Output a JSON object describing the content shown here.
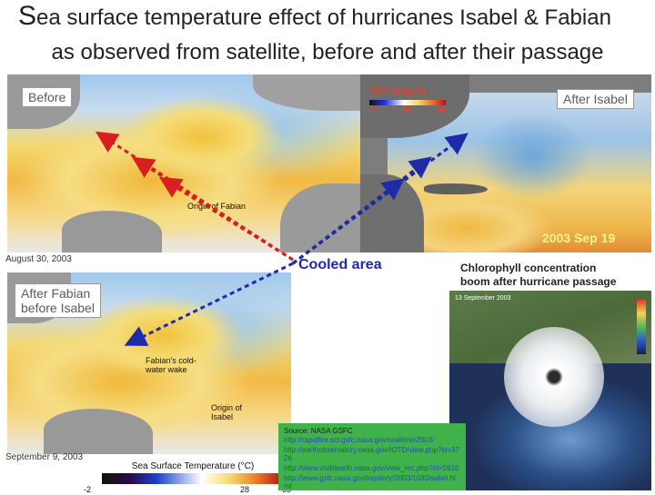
{
  "title": {
    "line1_initial": "S",
    "line1_rest": "ea surface temperature effect of hurricanes Isabel & Fabian",
    "line2": "as observed from satellite, before and after their passage"
  },
  "panels": {
    "before": {
      "label": "Before",
      "date": "August 30, 2003",
      "annotation": "Origin of Fabian"
    },
    "after_isabel": {
      "label": "After Isabel",
      "legend_title": "SST (deg C)",
      "legend_ticks": [
        "21",
        "28",
        "35"
      ],
      "date": "2003 Sep 19"
    },
    "after_fabian": {
      "label_line1": "After Fabian",
      "label_line2": "before Isabel",
      "date": "September 9, 2003",
      "annotation_wake": "Fabian's cold-water wake",
      "annotation_origin": "Origin of Isabel",
      "legend_title": "Sea Surface Temperature (°C)",
      "legend_ticks": [
        "-2",
        "28",
        "35"
      ]
    },
    "chlorophyll": {
      "title_line1": "Chlorophyll concentration",
      "title_line2": "boom after hurricane passage",
      "date": "13 September 2003"
    }
  },
  "cooled_area": "Cooled area",
  "source": {
    "title": "Source: NASA GSFC",
    "links": [
      "http://rapidfire.sci.gsfc.nasa.gov/realtime/2003/",
      "http://earthobservatory.nasa.gov/IOTD/view.php?id=3726",
      "http://www.visiblearth.nasa.gov/view_rec.php?id=5916",
      "http://www.gsfc.nasa.gov/topstory/2003/1030isabel.html"
    ]
  },
  "colors": {
    "arrow": "#d81e1e",
    "arrow_blue": "#1f2aa8",
    "cooled_text": "#1f2aa8",
    "source_bg": "#3fb34a"
  }
}
